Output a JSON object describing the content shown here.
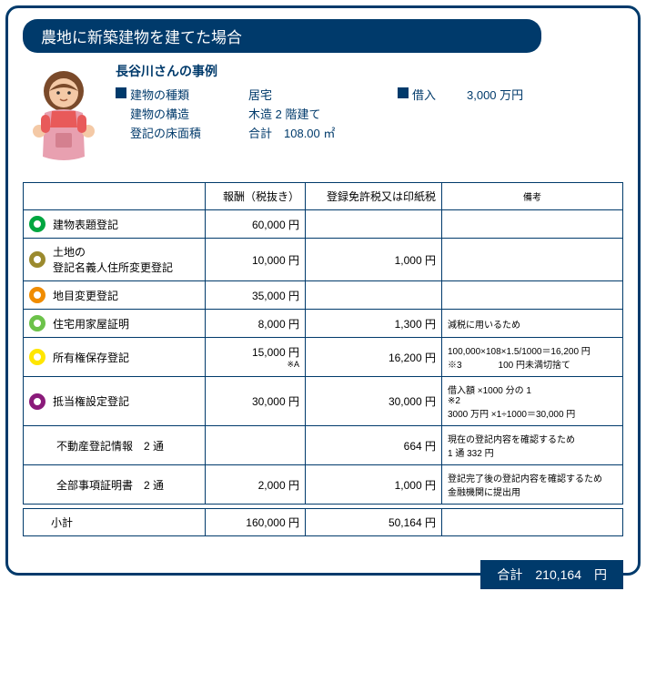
{
  "title": "農地に新築建物を建てた場合",
  "case_name": "長谷川さんの事例",
  "building": {
    "type_label": "建物の種類",
    "type_val": "居宅",
    "struct_label": "建物の構造",
    "struct_val": "木造 2 階建て",
    "area_label": "登記の床面積",
    "area_val": "合計　108.00 ㎡"
  },
  "loan": {
    "label": "借入",
    "val": "3,000 万円"
  },
  "table": {
    "headers": {
      "name": "",
      "fee": "報酬（税抜き）",
      "tax": "登録免許税又は印紙税",
      "note": "備考"
    },
    "rows": [
      {
        "circle": "#00a640",
        "name": "建物表題登記",
        "fee": "60,000 円",
        "tax": "",
        "note": ""
      },
      {
        "circle": "#9b8a2e",
        "name": "土地の\n登記名義人住所変更登記",
        "fee": "10,000 円",
        "tax": "1,000 円",
        "note": ""
      },
      {
        "circle": "#f08c00",
        "name": "地目変更登記",
        "fee": "35,000 円",
        "tax": "",
        "note": ""
      },
      {
        "circle": "#6cc24a",
        "name": "住宅用家屋証明",
        "fee": "8,000 円",
        "tax": "1,300 円",
        "note": "減税に用いるため"
      },
      {
        "circle": "#ffe600",
        "name": "所有権保存登記",
        "fee": "15,000 円",
        "fee_sub": "※A",
        "tax": "16,200 円",
        "note": "100,000×108×1.5/1000＝16,200 円\n※3　　　　100 円未満切捨て"
      },
      {
        "circle": "#8a1a7a",
        "name": "抵当権設定登記",
        "fee": "30,000 円",
        "tax": "30,000 円",
        "note": "借入額 ×1000 分の 1\n※2\n3000 万円 ×1÷1000＝30,000 円"
      },
      {
        "circle": null,
        "name": "不動産登記情報　2 通",
        "fee": "",
        "tax": "664 円",
        "note": "現在の登記内容を確認するため\n1 通 332 円"
      },
      {
        "circle": null,
        "name": "全部事項証明書　2 通",
        "fee": "2,000 円",
        "tax": "1,000 円",
        "note": "登記完了後の登記内容を確認するため　金融機関に提出用"
      }
    ],
    "subtotal": {
      "label": "小計",
      "fee": "160,000 円",
      "tax": "50,164 円"
    }
  },
  "total": {
    "label": "合計",
    "value": "210,164",
    "unit": "円"
  },
  "colors": {
    "brand": "#003a6b",
    "avatar_hair": "#7a4a2a",
    "avatar_skin": "#f4c9a6",
    "avatar_apron": "#e8a0b0",
    "avatar_shirt": "#e85a5a"
  }
}
